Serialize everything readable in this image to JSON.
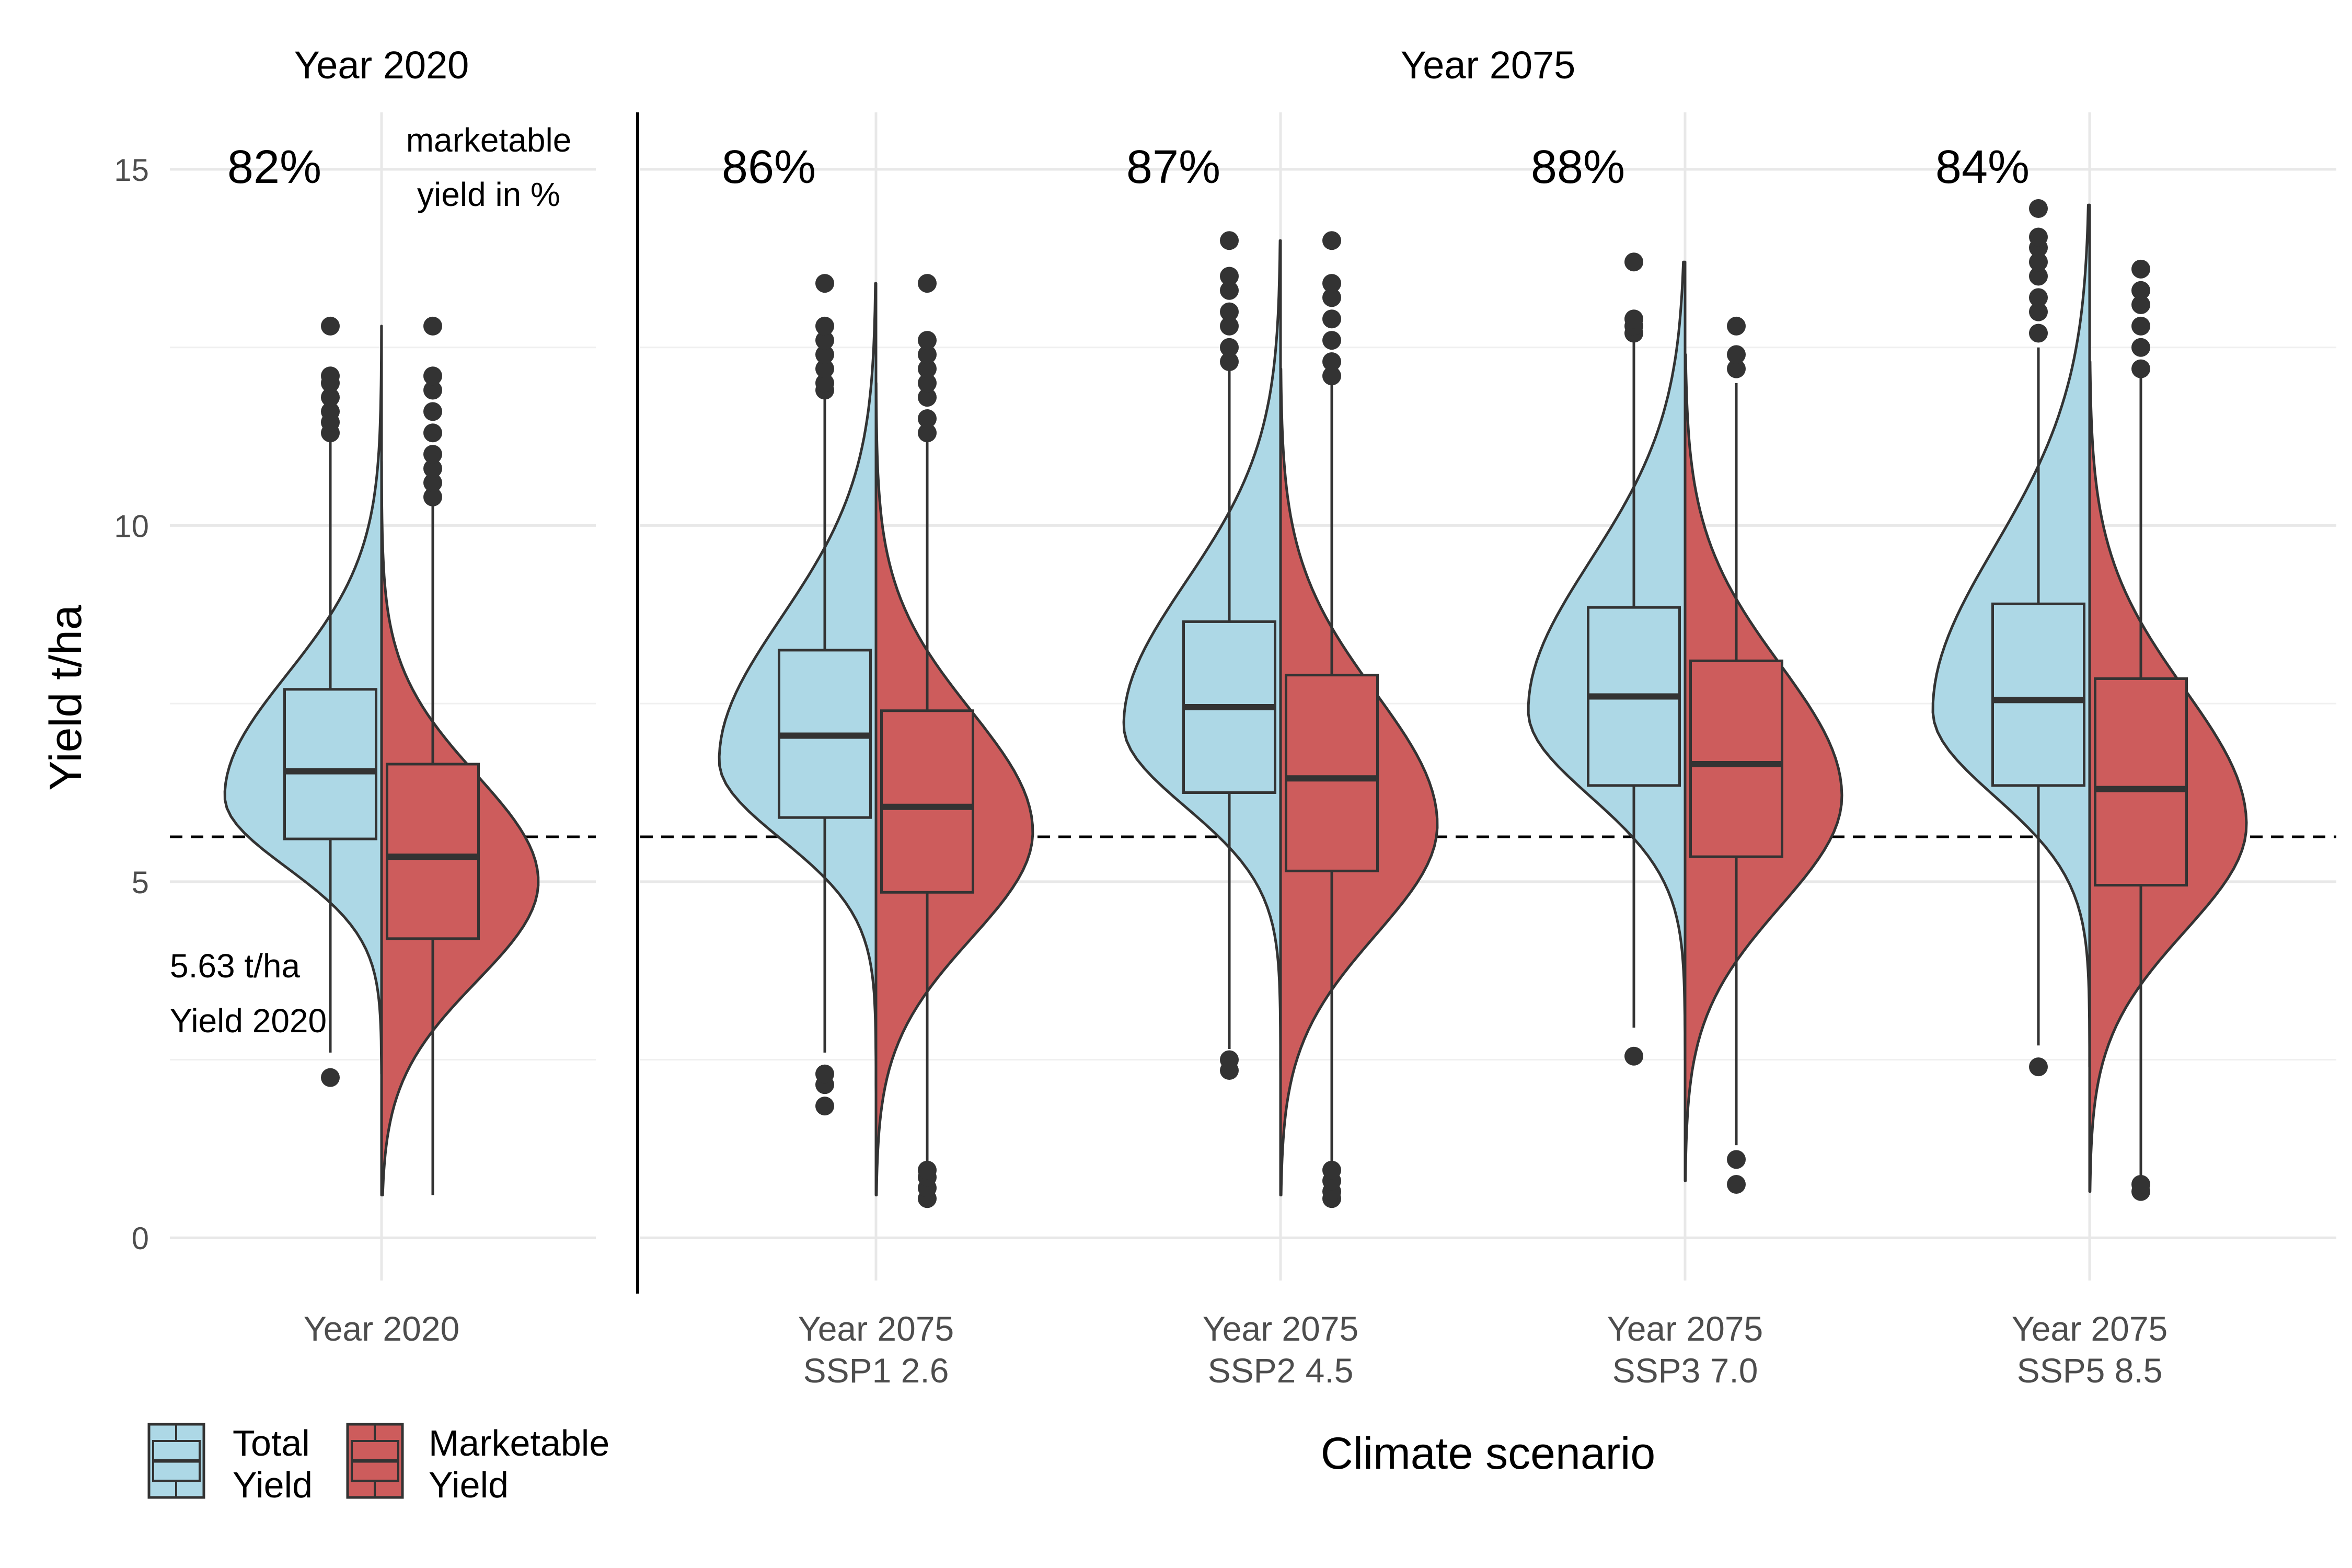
{
  "chart_data": {
    "type": "violin",
    "xlabel": "Climate scenario",
    "ylabel": "Yield t/ha",
    "ylim": [
      -0.6,
      15.8
    ],
    "yticks": [
      0,
      5,
      10,
      15
    ],
    "grid": true,
    "legend_position": "bottom-left",
    "colors": {
      "total": "#add8e6",
      "marketable": "#cd5c5c",
      "outline": "#333333"
    },
    "reference_line": {
      "value": 5.63,
      "label_value": "5.63 t/ha",
      "label_name": "Yield 2020",
      "style": "dashed"
    },
    "facets": [
      {
        "title": "Year 2020",
        "categories": [
          0
        ]
      },
      {
        "title": "Year 2075",
        "categories": [
          1,
          2,
          3,
          4
        ]
      }
    ],
    "categories": [
      {
        "label": "Year 2020",
        "sublabel": "",
        "marketable_pct": "82%"
      },
      {
        "label": "Year 2075",
        "sublabel": "SSP1 2.6",
        "marketable_pct": "86%"
      },
      {
        "label": "Year 2075",
        "sublabel": "SSP2 4.5",
        "marketable_pct": "87%"
      },
      {
        "label": "Year 2075",
        "sublabel": "SSP3 7.0",
        "marketable_pct": "88%"
      },
      {
        "label": "Year 2075",
        "sublabel": "SSP5 8.5",
        "marketable_pct": "84%"
      }
    ],
    "series": [
      {
        "name": "Total Yield",
        "stats": [
          {
            "min": 2.6,
            "q1": 5.6,
            "median": 6.55,
            "q3": 7.7,
            "max": 11.2,
            "mode": 6.2,
            "sd_lo": 1.0,
            "sd_hi": 1.7,
            "vmin": 2.3,
            "vmax": 12.8,
            "outliers_hi": [
              11.3,
              11.45,
              11.6,
              11.8,
              12.0,
              12.1,
              12.8
            ],
            "outliers_lo": [
              2.25
            ]
          },
          {
            "min": 2.6,
            "q1": 5.9,
            "median": 7.05,
            "q3": 8.25,
            "max": 11.8,
            "mode": 6.7,
            "sd_lo": 1.1,
            "sd_hi": 2.0,
            "vmin": 1.9,
            "vmax": 13.4,
            "outliers_hi": [
              11.9,
              12.0,
              12.2,
              12.4,
              12.6,
              12.8,
              13.4
            ],
            "outliers_lo": [
              2.15,
              2.3,
              1.85
            ]
          },
          {
            "min": 2.65,
            "q1": 6.25,
            "median": 7.45,
            "q3": 8.65,
            "max": 12.2,
            "mode": 7.2,
            "sd_lo": 1.15,
            "sd_hi": 2.0,
            "vmin": 2.3,
            "vmax": 14.0,
            "outliers_hi": [
              12.3,
              12.5,
              12.8,
              13.0,
              13.3,
              13.5,
              14.0
            ],
            "outliers_lo": [
              2.35,
              2.5
            ]
          },
          {
            "min": 2.95,
            "q1": 6.35,
            "median": 7.6,
            "q3": 8.85,
            "max": 12.6,
            "mode": 7.4,
            "sd_lo": 1.2,
            "sd_hi": 2.1,
            "vmin": 2.5,
            "vmax": 13.7,
            "outliers_hi": [
              12.7,
              12.8,
              12.9,
              13.7
            ],
            "outliers_lo": [
              2.55
            ]
          },
          {
            "min": 2.7,
            "q1": 6.35,
            "median": 7.55,
            "q3": 8.9,
            "max": 12.5,
            "mode": 7.4,
            "sd_lo": 1.2,
            "sd_hi": 2.3,
            "vmin": 2.4,
            "vmax": 14.5,
            "outliers_hi": [
              12.7,
              13.0,
              13.2,
              13.5,
              13.7,
              13.9,
              14.05,
              14.45
            ],
            "outliers_lo": [
              2.4
            ]
          }
        ]
      },
      {
        "name": "Marketable Yield",
        "stats": [
          {
            "min": 0.6,
            "q1": 4.2,
            "median": 5.35,
            "q3": 6.65,
            "max": 10.3,
            "mode": 5.0,
            "sd_lo": 1.4,
            "sd_hi": 1.5,
            "vmin": 0.6,
            "vmax": 10.9,
            "outliers_hi": [
              10.4,
              10.6,
              10.8,
              11.0,
              11.3,
              11.6,
              11.9,
              12.1,
              12.8
            ],
            "outliers_lo": []
          },
          {
            "min": 0.6,
            "q1": 4.85,
            "median": 6.05,
            "q3": 7.4,
            "max": 11.2,
            "mode": 5.7,
            "sd_lo": 1.5,
            "sd_hi": 1.7,
            "vmin": 0.6,
            "vmax": 12.0,
            "outliers_hi": [
              11.3,
              11.5,
              11.8,
              12.0,
              12.2,
              12.4,
              12.6,
              13.4
            ],
            "outliers_lo": [
              0.55,
              0.7,
              0.85,
              0.95
            ]
          },
          {
            "min": 0.6,
            "q1": 5.15,
            "median": 6.45,
            "q3": 7.9,
            "max": 12.0,
            "mode": 5.8,
            "sd_lo": 1.55,
            "sd_hi": 1.85,
            "vmin": 0.6,
            "vmax": 12.2,
            "outliers_hi": [
              12.1,
              12.3,
              12.6,
              12.9,
              13.2,
              13.4,
              14.0
            ],
            "outliers_lo": [
              0.55,
              0.65,
              0.8,
              0.95
            ]
          },
          {
            "min": 1.3,
            "q1": 5.35,
            "median": 6.65,
            "q3": 8.1,
            "max": 12.0,
            "mode": 6.2,
            "sd_lo": 1.55,
            "sd_hi": 1.85,
            "vmin": 0.8,
            "vmax": 12.4,
            "outliers_hi": [
              12.2,
              12.4,
              12.8
            ],
            "outliers_lo": [
              0.75,
              1.1
            ]
          },
          {
            "min": 0.7,
            "q1": 4.95,
            "median": 6.3,
            "q3": 7.85,
            "max": 12.1,
            "mode": 5.8,
            "sd_lo": 1.5,
            "sd_hi": 1.9,
            "vmin": 0.65,
            "vmax": 12.3,
            "outliers_hi": [
              12.2,
              12.5,
              12.8,
              13.1,
              13.3,
              13.6
            ],
            "outliers_lo": [
              0.65,
              0.75
            ]
          }
        ]
      }
    ]
  },
  "annotations": {
    "pct_label": "marketable\nyield in %"
  },
  "legend": {
    "total_label": "Total\nYield",
    "marketable_label": "Marketable\nYield"
  }
}
